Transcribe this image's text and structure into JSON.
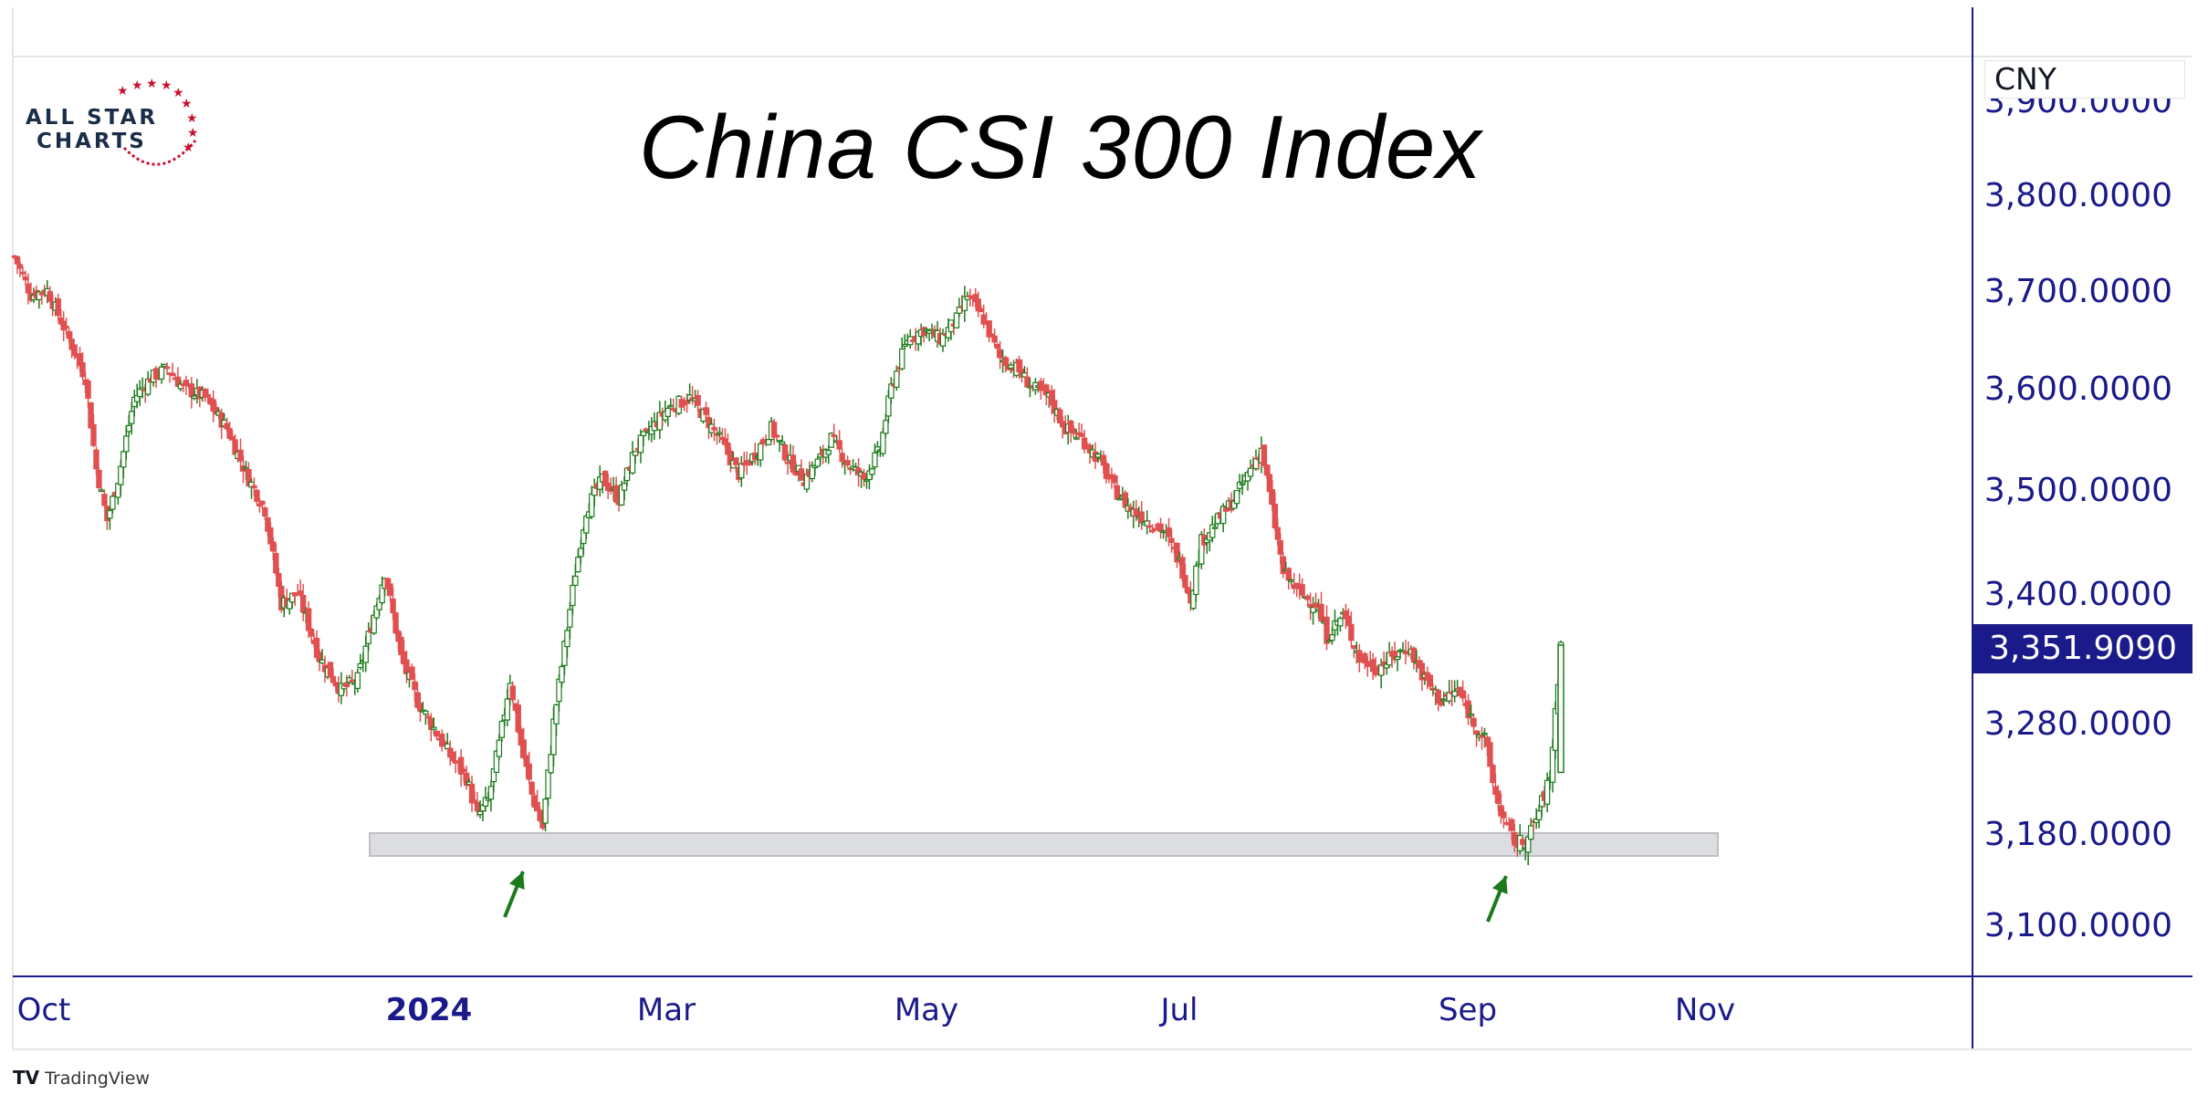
{
  "chart_data": {
    "type": "candlestick",
    "title": "China CSI 300 Index",
    "currency": "CNY",
    "last_price_label": "3,351.9090",
    "y_ticks": [
      3100,
      3180,
      3280,
      3400,
      3500,
      3600,
      3700,
      3800,
      3900
    ],
    "y_tick_labels": [
      "3,100.0000",
      "3,180.0000",
      "3,280.0000",
      "3,400.0000",
      "3,500.0000",
      "3,600.0000",
      "3,700.0000",
      "3,800.0000",
      "3,900.0000"
    ],
    "x_ticks": [
      "Oct",
      "2024",
      "Mar",
      "May",
      "Jul",
      "Sep",
      "Nov"
    ],
    "support_zone": [
      3160,
      3180
    ],
    "colors": {
      "up": "#1b7a1b",
      "down": "#e05050",
      "axis_text": "#1a1a8a",
      "zone": "#dcdde0",
      "arrow": "#1b7a1b"
    },
    "close_path": [
      [
        0,
        3735
      ],
      [
        6,
        3695
      ],
      [
        12,
        3700
      ],
      [
        20,
        3650
      ],
      [
        26,
        3610
      ],
      [
        30,
        3520
      ],
      [
        34,
        3470
      ],
      [
        38,
        3510
      ],
      [
        44,
        3590
      ],
      [
        50,
        3610
      ],
      [
        56,
        3620
      ],
      [
        62,
        3600
      ],
      [
        70,
        3590
      ],
      [
        78,
        3560
      ],
      [
        86,
        3510
      ],
      [
        92,
        3480
      ],
      [
        98,
        3390
      ],
      [
        104,
        3400
      ],
      [
        112,
        3340
      ],
      [
        120,
        3310
      ],
      [
        126,
        3320
      ],
      [
        132,
        3380
      ],
      [
        136,
        3420
      ],
      [
        142,
        3340
      ],
      [
        148,
        3300
      ],
      [
        154,
        3275
      ],
      [
        160,
        3250
      ],
      [
        166,
        3230
      ],
      [
        170,
        3195
      ],
      [
        174,
        3210
      ],
      [
        178,
        3260
      ],
      [
        182,
        3320
      ],
      [
        186,
        3260
      ],
      [
        190,
        3215
      ],
      [
        194,
        3185
      ],
      [
        198,
        3280
      ],
      [
        202,
        3350
      ],
      [
        206,
        3420
      ],
      [
        210,
        3480
      ],
      [
        216,
        3510
      ],
      [
        222,
        3490
      ],
      [
        228,
        3540
      ],
      [
        234,
        3560
      ],
      [
        240,
        3580
      ],
      [
        248,
        3590
      ],
      [
        254,
        3570
      ],
      [
        260,
        3545
      ],
      [
        266,
        3515
      ],
      [
        272,
        3535
      ],
      [
        278,
        3560
      ],
      [
        284,
        3530
      ],
      [
        290,
        3510
      ],
      [
        296,
        3530
      ],
      [
        300,
        3550
      ],
      [
        306,
        3525
      ],
      [
        312,
        3510
      ],
      [
        318,
        3540
      ],
      [
        322,
        3600
      ],
      [
        328,
        3650
      ],
      [
        334,
        3660
      ],
      [
        340,
        3650
      ],
      [
        346,
        3670
      ],
      [
        350,
        3695
      ],
      [
        356,
        3670
      ],
      [
        362,
        3630
      ],
      [
        368,
        3620
      ],
      [
        374,
        3600
      ],
      [
        380,
        3590
      ],
      [
        386,
        3560
      ],
      [
        392,
        3550
      ],
      [
        398,
        3530
      ],
      [
        404,
        3500
      ],
      [
        410,
        3480
      ],
      [
        416,
        3470
      ],
      [
        422,
        3460
      ],
      [
        428,
        3430
      ],
      [
        432,
        3395
      ],
      [
        436,
        3450
      ],
      [
        442,
        3470
      ],
      [
        448,
        3490
      ],
      [
        454,
        3520
      ],
      [
        458,
        3540
      ],
      [
        462,
        3480
      ],
      [
        466,
        3420
      ],
      [
        472,
        3400
      ],
      [
        478,
        3390
      ],
      [
        482,
        3360
      ],
      [
        488,
        3380
      ],
      [
        494,
        3340
      ],
      [
        500,
        3330
      ],
      [
        506,
        3340
      ],
      [
        512,
        3350
      ],
      [
        518,
        3320
      ],
      [
        524,
        3300
      ],
      [
        530,
        3310
      ],
      [
        536,
        3280
      ],
      [
        540,
        3265
      ],
      [
        544,
        3215
      ],
      [
        548,
        3185
      ],
      [
        552,
        3170
      ],
      [
        556,
        3175
      ],
      [
        560,
        3200
      ],
      [
        564,
        3230
      ],
      [
        568,
        3351.9
      ]
    ]
  },
  "branding": {
    "logo_line1": "ALL STAR",
    "logo_line2": "CHARTS",
    "platform": "TradingView"
  }
}
